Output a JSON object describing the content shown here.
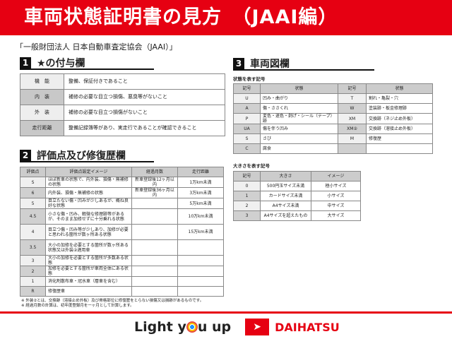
{
  "header": {
    "title": "車両状態証明書の見方　（JAAI編）"
  },
  "organization": "「一般財団法人 日本自動車査定協会（JAAI）」",
  "section1": {
    "num": "1",
    "title": "★の付与欄",
    "rows": [
      [
        "機　能",
        "整備、保証付きであること"
      ],
      [
        "内　装",
        "補修の必要な目立つ損傷、悪臭等がないこと"
      ],
      [
        "外　装",
        "補修の必要な目立つ損傷がないこと"
      ],
      [
        "走行距離",
        "整備記録簿等があり、実走行であることが確認できること"
      ]
    ]
  },
  "section2": {
    "num": "2",
    "title": "評価点及び修復歴欄",
    "headers": [
      "評価点",
      "評価点設定イメージ",
      "経過月数",
      "走行距離"
    ],
    "rows": [
      [
        "S",
        "ほぼ新車の状態で、内外装、損傷・無補修の状態",
        "新車登録後12ヶ月以内",
        "1万km未満"
      ],
      [
        "6",
        "内外装、損傷・無補修の状態",
        "新車登録後36ヶ月以内",
        "3万km未満"
      ],
      [
        "5",
        "目立たない傷・凹みが少しあるが、概ね良好な状態",
        "",
        "5万km未満"
      ],
      [
        "4.5",
        "小さな傷・凹み、軽微な修理跡等があるが、そのまま加修せずに十分乗れる状態",
        "",
        "10万km未満"
      ],
      [
        "4",
        "目立つ傷・凹み等が少しあり、加修が必要と思われる箇所が数ヶ所ある状態",
        "",
        "15万km未満"
      ],
      [
        "3.5",
        "大小の加修を必要とする箇所が数ヶ所ある状態又は外装②適用車",
        "",
        ""
      ],
      [
        "3",
        "大小の加修を必要とする箇所が多数ある状態",
        "",
        ""
      ],
      [
        "2",
        "加修を必要とする箇所が車両全体にある状態",
        "",
        ""
      ],
      [
        "1",
        "消化剤散布車・冠水車（層車を含む）",
        "",
        ""
      ],
      [
        "R",
        "修復歴車",
        "",
        ""
      ]
    ]
  },
  "section3": {
    "num": "3",
    "title": "車両図欄",
    "condition_label": "状態を表す記号",
    "condition_headers": [
      "記号",
      "状態",
      "記号",
      "状態"
    ],
    "condition_rows": [
      [
        "U",
        "凹み・曲がり",
        "T",
        "割れ・亀裂・穴"
      ],
      [
        "A",
        "傷・ささくれ",
        "W",
        "塗装跡・板金修理跡"
      ],
      [
        "P",
        "変色・退色・剥げ・シール（テープ）跡",
        "XM",
        "交換跡（ネジ止め外板）"
      ],
      [
        "UA",
        "傷を伴う凹み",
        "XM②",
        "交換跡（溶接止め外板）"
      ],
      [
        "S",
        "さび",
        "M",
        "修復歴"
      ],
      [
        "C",
        "腐食",
        "",
        ""
      ]
    ],
    "size_label": "大きさを表す記号",
    "size_headers": [
      "記号",
      "大きさ",
      "イメージ"
    ],
    "size_rows": [
      [
        "0",
        "500円玉サイズ未満",
        "極小サイズ"
      ],
      [
        "1",
        "カードサイズ未満",
        "小サイズ"
      ],
      [
        "2",
        "A4サイズ未満",
        "中サイズ"
      ],
      [
        "3",
        "A4サイズを超えたもの",
        "大サイズ"
      ]
    ]
  },
  "notes": [
    "※ 外装②とは、交換跡（溶接止め外板）及び骨格部位に修復歴をとらない損傷又は損跡があるものです。",
    "※ 経過月数の計算は、初年度登録月を一ヶ月として計算します。"
  ],
  "footer": {
    "slogan_a": "Light y",
    "slogan_b": "u up",
    "brand": "DAIHATSU"
  },
  "colors": {
    "accent": "#e60012"
  }
}
